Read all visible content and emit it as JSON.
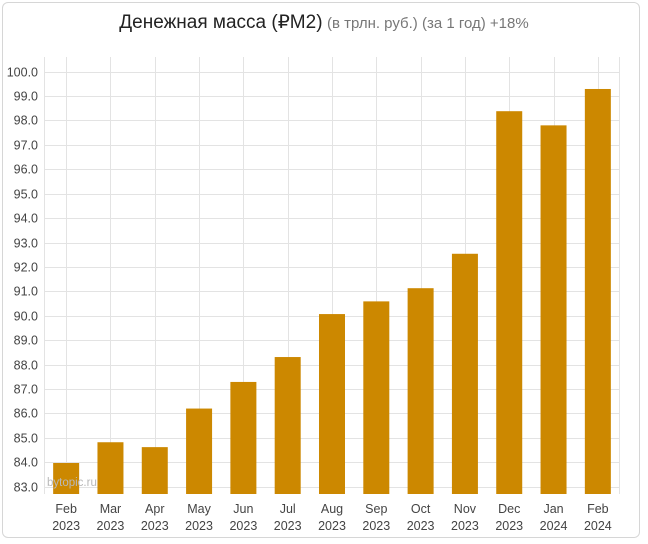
{
  "chart_data": {
    "type": "bar",
    "title": "Денежная масса (₽M2)",
    "subtitle": "(в трлн. руб.) (за 1 год) +18%",
    "watermark": "bytopic.ru",
    "categories": [
      [
        "Feb",
        "2023"
      ],
      [
        "Mar",
        "2023"
      ],
      [
        "Apr",
        "2023"
      ],
      [
        "May",
        "2023"
      ],
      [
        "Jun",
        "2023"
      ],
      [
        "Jul",
        "2023"
      ],
      [
        "Aug",
        "2023"
      ],
      [
        "Sep",
        "2023"
      ],
      [
        "Oct",
        "2023"
      ],
      [
        "Nov",
        "2023"
      ],
      [
        "Dec",
        "2023"
      ],
      [
        "Jan",
        "2024"
      ],
      [
        "Feb",
        "2024"
      ]
    ],
    "values": [
      83.97,
      84.82,
      84.62,
      86.2,
      87.29,
      88.31,
      90.07,
      90.59,
      91.13,
      92.54,
      98.38,
      97.8,
      99.29
    ],
    "ylim": [
      82.7,
      100.6
    ],
    "yticks": [
      "100.0",
      "99.0",
      "98.0",
      "97.0",
      "96.0",
      "95.0",
      "94.0",
      "93.0",
      "92.0",
      "91.0",
      "90.0",
      "89.0",
      "88.0",
      "87.0",
      "86.0",
      "85.0",
      "84.0",
      "83.0"
    ],
    "grid": true,
    "legend": "none",
    "colors": {
      "bar": "#cc8800",
      "grid": "#e3e3e3",
      "axis_text": "#444444",
      "watermark": "#b9b9b9"
    }
  }
}
